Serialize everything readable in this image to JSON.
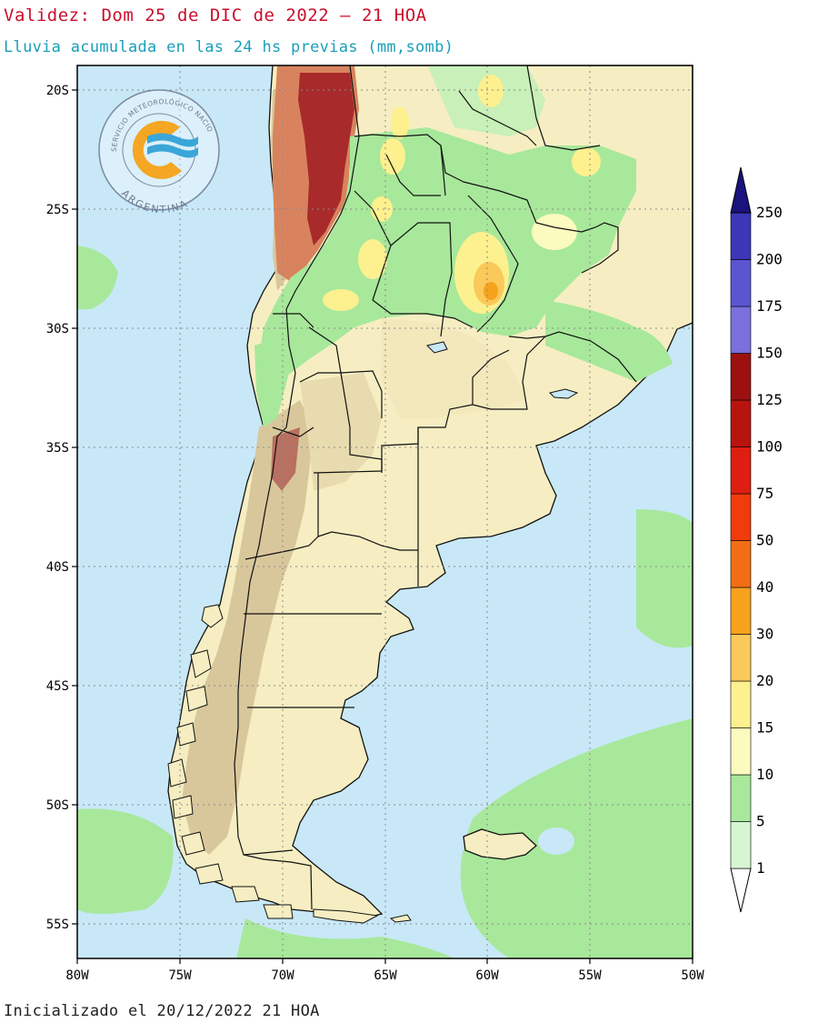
{
  "header": {
    "validity": "Validez: Dom 25 de DIC de 2022 — 21 HOA",
    "subtitle": "Lluvia acumulada en las 24 hs previas (mm,somb)"
  },
  "footer": {
    "init": "Inicializado el 20/12/2022 21 HOA"
  },
  "logo": {
    "ring_text": "SERVICIO METEOROLÓGICO NACIONAL",
    "country": "ARGENTINA",
    "icon": "smn-logo"
  },
  "axes": {
    "lat_labels": [
      "20S",
      "25S",
      "30S",
      "35S",
      "40S",
      "45S",
      "50S",
      "55S"
    ],
    "lon_labels": [
      "80W",
      "75W",
      "70W",
      "65W",
      "60W",
      "55W",
      "50W"
    ]
  },
  "colorbar": {
    "labels": [
      "1",
      "5",
      "10",
      "15",
      "20",
      "30",
      "40",
      "50",
      "75",
      "100",
      "125",
      "150",
      "175",
      "200",
      "250"
    ],
    "colors": [
      "#d6f5d2",
      "#a8e89b",
      "#fbfabf",
      "#fdf08f",
      "#fbc85a",
      "#f7a21c",
      "#f26e14",
      "#f03c0c",
      "#dd1e10",
      "#b8140e",
      "#9c1010",
      "#7b70dc",
      "#5a55d0",
      "#3c36b8",
      "#241b98"
    ],
    "low_color": "#ffffff",
    "high_color": "#1a127e"
  },
  "colors": {
    "ocean": "#c8e8f8",
    "land": "#f6eec2",
    "terrain": "#d9c79c",
    "andes": "#b98f6c",
    "green": "#a8e89b",
    "light_green": "#c8f0b8",
    "yellow": "#fdf08f",
    "orange": "#f7a21c",
    "dark_red": "#a82a2a"
  }
}
